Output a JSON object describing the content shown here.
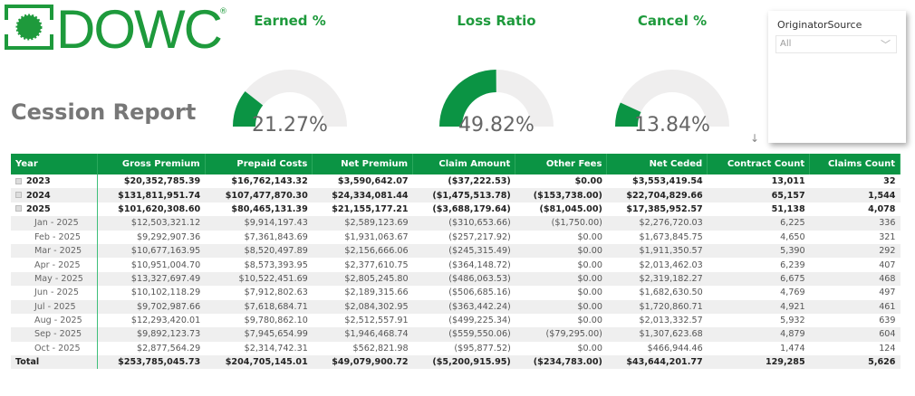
{
  "brand": {
    "logo_text": "DOWC",
    "reg": "®",
    "color": "#1e9a3c"
  },
  "report_title": "Cession Report",
  "gauges": [
    {
      "title": "Earned %",
      "value_label": "21.27%",
      "value": 21.27
    },
    {
      "title": "Loss Ratio",
      "value_label": "49.82%",
      "value": 49.82
    },
    {
      "title": "Cancel %",
      "value_label": "13.84%",
      "value": 13.84
    }
  ],
  "slicer": {
    "title": "OriginatorSource",
    "selected": "All"
  },
  "table": {
    "headers": [
      "Year",
      "Gross Premium",
      "Prepaid Costs",
      "Net Premium",
      "Claim Amount",
      "Other Fees",
      "Net Ceded",
      "Contract Count",
      "Claims Count"
    ],
    "rows": [
      {
        "type": "year",
        "cells": [
          "2023",
          "$20,352,785.39",
          "$16,762,143.32",
          "$3,590,642.07",
          "($37,222.53)",
          "$0.00",
          "$3,553,419.54",
          "13,011",
          "32"
        ]
      },
      {
        "type": "year",
        "cells": [
          "2024",
          "$131,811,951.74",
          "$107,477,870.30",
          "$24,334,081.44",
          "($1,475,513.78)",
          "($153,738.00)",
          "$22,704,829.66",
          "65,157",
          "1,544"
        ]
      },
      {
        "type": "year",
        "cells": [
          "2025",
          "$101,620,308.60",
          "$80,465,131.39",
          "$21,155,177.21",
          "($3,688,179.64)",
          "($81,045.00)",
          "$17,385,952.57",
          "51,138",
          "4,078"
        ]
      },
      {
        "type": "month",
        "cells": [
          "Jan - 2025",
          "$12,503,321.12",
          "$9,914,197.43",
          "$2,589,123.69",
          "($310,653.66)",
          "($1,750.00)",
          "$2,276,720.03",
          "6,225",
          "336"
        ]
      },
      {
        "type": "month",
        "cells": [
          "Feb - 2025",
          "$9,292,907.36",
          "$7,361,843.69",
          "$1,931,063.67",
          "($257,217.92)",
          "$0.00",
          "$1,673,845.75",
          "4,650",
          "321"
        ]
      },
      {
        "type": "month",
        "cells": [
          "Mar - 2025",
          "$10,677,163.95",
          "$8,520,497.89",
          "$2,156,666.06",
          "($245,315.49)",
          "$0.00",
          "$1,911,350.57",
          "5,390",
          "292"
        ]
      },
      {
        "type": "month",
        "cells": [
          "Apr - 2025",
          "$10,951,004.70",
          "$8,573,393.95",
          "$2,377,610.75",
          "($364,148.72)",
          "$0.00",
          "$2,013,462.03",
          "6,239",
          "407"
        ]
      },
      {
        "type": "month",
        "cells": [
          "May - 2025",
          "$13,327,697.49",
          "$10,522,451.69",
          "$2,805,245.80",
          "($486,063.53)",
          "$0.00",
          "$2,319,182.27",
          "6,675",
          "468"
        ]
      },
      {
        "type": "month",
        "cells": [
          "Jun - 2025",
          "$10,102,118.29",
          "$7,912,802.63",
          "$2,189,315.66",
          "($506,685.16)",
          "$0.00",
          "$1,682,630.50",
          "4,769",
          "497"
        ]
      },
      {
        "type": "month",
        "cells": [
          "Jul - 2025",
          "$9,702,987.66",
          "$7,618,684.71",
          "$2,084,302.95",
          "($363,442.24)",
          "$0.00",
          "$1,720,860.71",
          "4,921",
          "461"
        ]
      },
      {
        "type": "month",
        "cells": [
          "Aug - 2025",
          "$12,293,420.01",
          "$9,780,862.10",
          "$2,512,557.91",
          "($499,225.34)",
          "$0.00",
          "$2,013,332.57",
          "5,932",
          "639"
        ]
      },
      {
        "type": "month",
        "cells": [
          "Sep - 2025",
          "$9,892,123.73",
          "$7,945,654.99",
          "$1,946,468.74",
          "($559,550.06)",
          "($79,295.00)",
          "$1,307,623.68",
          "4,879",
          "604"
        ]
      },
      {
        "type": "month",
        "cells": [
          "Oct - 2025",
          "$2,877,564.29",
          "$2,314,742.31",
          "$562,821.98",
          "($95,877.52)",
          "$0.00",
          "$466,944.46",
          "1,474",
          "124"
        ]
      },
      {
        "type": "total",
        "cells": [
          "Total",
          "$253,785,045.73",
          "$204,705,145.01",
          "$49,079,900.72",
          "($5,200,915.95)",
          "($234,783.00)",
          "$43,644,201.77",
          "129,285",
          "5,626"
        ]
      }
    ]
  },
  "colors": {
    "header_bg": "#0b9444",
    "gauge_fill": "#0b9444",
    "gauge_track": "#efeeee"
  }
}
